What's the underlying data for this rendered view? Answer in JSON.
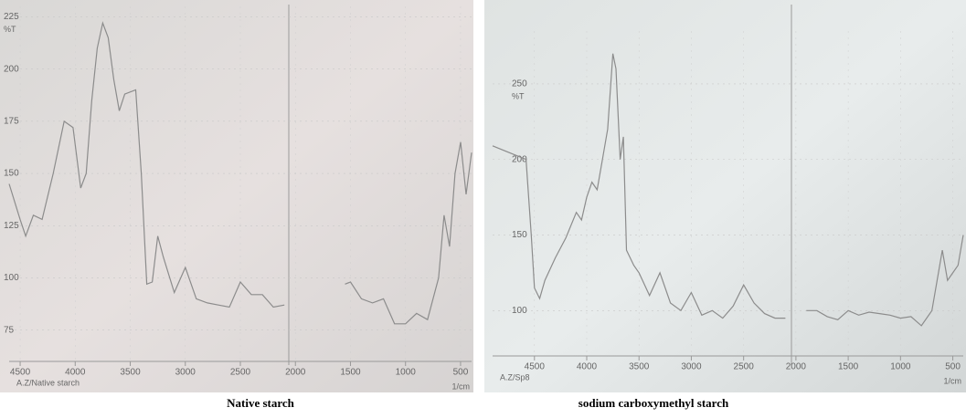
{
  "chart_data": [
    {
      "type": "line",
      "caption": "Native starch",
      "ylabel": "%T",
      "xlabel": "1/cm",
      "x": [
        4600,
        4500,
        4450,
        4380,
        4300,
        4200,
        4100,
        4020,
        3950,
        3900,
        3850,
        3800,
        3750,
        3700,
        3650,
        3600,
        3550,
        3450,
        3400,
        3350,
        3300,
        3250,
        3200,
        3100,
        3000,
        2900,
        2800,
        2700,
        2600,
        2500,
        2400,
        2300,
        2200,
        2100,
        2000,
        1550,
        1500,
        1400,
        1300,
        1200,
        1100,
        1000,
        900,
        800,
        700,
        650,
        600,
        550,
        500,
        450,
        400
      ],
      "series": [
        {
          "name": "A.Z/Native starch",
          "color": "#8c8c8c",
          "values": [
            145,
            128,
            120,
            130,
            128,
            150,
            175,
            172,
            143,
            150,
            185,
            210,
            222,
            215,
            195,
            180,
            188,
            190,
            150,
            97,
            98,
            120,
            110,
            93,
            105,
            90,
            88,
            87,
            86,
            98,
            92,
            92,
            86,
            87,
            null,
            97,
            98,
            90,
            88,
            90,
            78,
            78,
            83,
            80,
            100,
            130,
            115,
            150,
            165,
            140,
            160
          ]
        }
      ],
      "xlim": [
        4600,
        400
      ],
      "xticks": [
        4500,
        4000,
        3500,
        3000,
        2500,
        2000,
        1500,
        1000,
        500
      ],
      "ylim": [
        60,
        230
      ],
      "yticks": [
        75,
        100,
        125,
        150,
        175,
        200,
        225
      ],
      "grid": true
    },
    {
      "type": "line",
      "caption": "sodium carboxymethyl starch",
      "ylabel": "%T",
      "xlabel": "1/cm",
      "x": [
        4900,
        4580,
        4530,
        4500,
        4450,
        4400,
        4300,
        4200,
        4100,
        4050,
        4000,
        3950,
        3900,
        3850,
        3800,
        3750,
        3720,
        3680,
        3650,
        3620,
        3550,
        3500,
        3400,
        3300,
        3200,
        3100,
        3000,
        2900,
        2800,
        2700,
        2600,
        2500,
        2400,
        2300,
        2200,
        2100,
        2000,
        1900,
        1800,
        1700,
        1600,
        1500,
        1400,
        1300,
        1200,
        1100,
        1000,
        900,
        800,
        700,
        600,
        550,
        500,
        450,
        400
      ],
      "series": [
        {
          "name": "A.Z/Sp8",
          "color": "#8c8c8c",
          "values": [
            209,
            200,
            150,
            115,
            108,
            120,
            135,
            148,
            165,
            160,
            175,
            185,
            180,
            200,
            220,
            270,
            260,
            200,
            215,
            140,
            130,
            125,
            110,
            125,
            105,
            100,
            112,
            97,
            100,
            95,
            103,
            117,
            105,
            98,
            95,
            95,
            null,
            100,
            100,
            96,
            94,
            100,
            97,
            99,
            98,
            97,
            95,
            96,
            90,
            100,
            140,
            120,
            125,
            130,
            150
          ]
        }
      ],
      "xlim": [
        4900,
        400
      ],
      "xticks": [
        4500,
        4000,
        3500,
        3000,
        2500,
        2000,
        1500,
        1000,
        500
      ],
      "ylim": [
        70,
        285
      ],
      "yticks": [
        100,
        150,
        200,
        250
      ],
      "grid": true
    }
  ]
}
